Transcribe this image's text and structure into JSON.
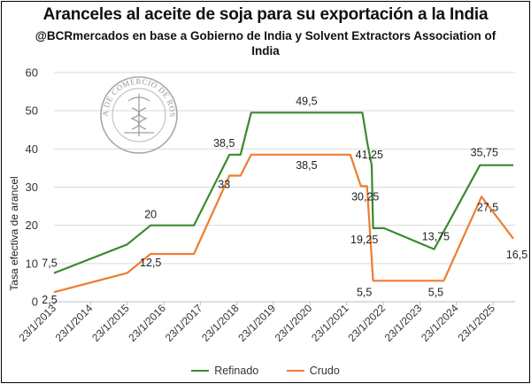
{
  "chart_data": {
    "type": "line",
    "title": "Aranceles al aceite de soja para su exportación a la India",
    "subtitle": "@BCRmercados en base a Gobierno de India y Solvent Extractors Association of India",
    "xlabel": "",
    "ylabel": "Tasa efectiva de arancel",
    "ylim": [
      0,
      60
    ],
    "yticks": [
      "0",
      "10",
      "20",
      "30",
      "40",
      "50",
      "60"
    ],
    "x_ticks": [
      "23/1/2013",
      "23/1/2014",
      "23/1/2015",
      "23/1/2016",
      "23/1/2017",
      "23/1/2018",
      "23/1/2019",
      "23/1/2020",
      "23/1/2021",
      "23/1/2022",
      "23/1/2023",
      "23/1/2024",
      "23/1/2025"
    ],
    "xlim": [
      "2013-01-23",
      "2025-09-01"
    ],
    "grid": true,
    "legend": "bottom",
    "series": [
      {
        "name": "Refinado",
        "color": "#3a8a2e",
        "points": [
          [
            "2013-01-23",
            7.5
          ],
          [
            "2015-01-23",
            15
          ],
          [
            "2015-09-15",
            20
          ],
          [
            "2016-11-20",
            20
          ],
          [
            "2017-11-10",
            38.5
          ],
          [
            "2018-03-01",
            38.5
          ],
          [
            "2018-06-15",
            49.5
          ],
          [
            "2021-06-30",
            49.5
          ],
          [
            "2021-08-20",
            41.25
          ],
          [
            "2021-09-30",
            35.75
          ],
          [
            "2021-10-15",
            19.25
          ],
          [
            "2022-02-01",
            19.25
          ],
          [
            "2023-06-15",
            13.75
          ],
          [
            "2024-09-15",
            35.75
          ],
          [
            "2025-08-15",
            35.75
          ]
        ]
      },
      {
        "name": "Crudo",
        "color": "#ed7d31",
        "points": [
          [
            "2013-01-23",
            2.5
          ],
          [
            "2015-01-23",
            7.5
          ],
          [
            "2015-09-15",
            12.5
          ],
          [
            "2016-11-20",
            12.5
          ],
          [
            "2017-11-10",
            33
          ],
          [
            "2018-03-01",
            33
          ],
          [
            "2018-06-15",
            38.5
          ],
          [
            "2021-03-01",
            38.5
          ],
          [
            "2021-06-15",
            30.25
          ],
          [
            "2021-08-15",
            30.25
          ],
          [
            "2021-10-15",
            5.5
          ],
          [
            "2023-09-20",
            5.5
          ],
          [
            "2024-10-01",
            27.5
          ],
          [
            "2025-08-15",
            16.5
          ]
        ]
      }
    ],
    "data_labels": [
      {
        "text": "7,5",
        "x": "2013-01-23",
        "y": 7.5,
        "color": "#222222"
      },
      {
        "text": "2,5",
        "x": "2013-01-23",
        "y": 2.5,
        "color": "#222222"
      },
      {
        "text": "20",
        "x": "2015-09-15",
        "y": 20,
        "color": "#222222"
      },
      {
        "text": "12,5",
        "x": "2015-09-15",
        "y": 12.5,
        "color": "#222222"
      },
      {
        "text": "38,5",
        "x": "2017-11-10",
        "y": 38.5,
        "color": "#222222"
      },
      {
        "text": "33",
        "x": "2017-11-10",
        "y": 33,
        "color": "#222222"
      },
      {
        "text": "49,5",
        "x": "2019-12-20",
        "y": 49.5,
        "color": "#222222"
      },
      {
        "text": "38,5",
        "x": "2019-12-20",
        "y": 38.5,
        "color": "#222222"
      },
      {
        "text": "41,25",
        "x": "2021-08-20",
        "y": 41.25,
        "color": "#222222"
      },
      {
        "text": "30,25",
        "x": "2021-08-15",
        "y": 30.25,
        "color": "#222222"
      },
      {
        "text": "19,25",
        "x": "2021-10-15",
        "y": 19.25,
        "color": "#222222"
      },
      {
        "text": "5,5",
        "x": "2021-10-15",
        "y": 5.5,
        "color": "#222222"
      },
      {
        "text": "13,75",
        "x": "2023-06-15",
        "y": 13.75,
        "color": "#222222"
      },
      {
        "text": "5,5",
        "x": "2023-06-15",
        "y": 5.5,
        "color": "#222222"
      },
      {
        "text": "35,75",
        "x": "2024-09-15",
        "y": 35.75,
        "color": "#222222"
      },
      {
        "text": "27,5",
        "x": "2024-10-01",
        "y": 27.5,
        "color": "#222222"
      },
      {
        "text": "16,5",
        "x": "2025-08-15",
        "y": 16.5,
        "color": "#222222"
      }
    ]
  },
  "watermark": {
    "text": "BOLSA DE COMERCIO DE ROSARIO",
    "icon": "caduceus-seal-icon"
  }
}
